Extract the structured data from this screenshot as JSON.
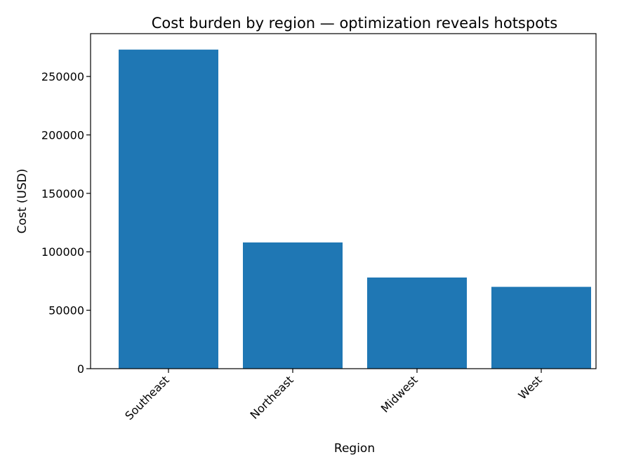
{
  "chart_data": {
    "type": "bar",
    "title": "Cost burden by region — optimization reveals hotspots",
    "xlabel": "Region",
    "ylabel": "Cost (USD)",
    "categories": [
      "Southeast",
      "Northeast",
      "Midwest",
      "West"
    ],
    "values": [
      273000,
      108000,
      78000,
      70000
    ],
    "ylim": [
      0,
      286650
    ],
    "yticks": [
      0,
      50000,
      100000,
      150000,
      200000,
      250000
    ],
    "ytick_labels": [
      "0",
      "50000",
      "100000",
      "150000",
      "200000",
      "250000"
    ],
    "grid": false,
    "legend": "none",
    "bar_color": "#1f77b4"
  }
}
